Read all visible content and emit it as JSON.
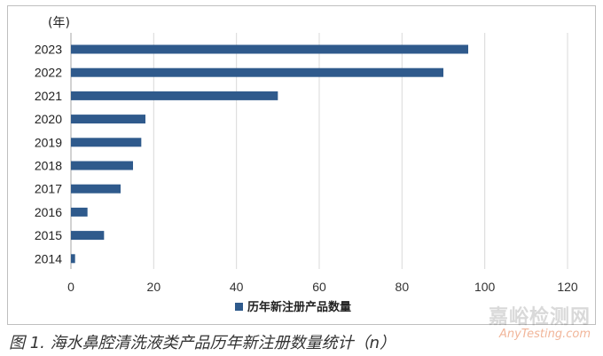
{
  "chart_data": {
    "type": "bar",
    "orientation": "horizontal",
    "title": "",
    "unit_label": "(年)",
    "categories": [
      "2023",
      "2022",
      "2021",
      "2020",
      "2019",
      "2018",
      "2017",
      "2016",
      "2015",
      "2014"
    ],
    "series": [
      {
        "name": "历年新注册产品数量",
        "values": [
          96,
          90,
          50,
          18,
          17,
          15,
          12,
          4,
          8,
          1
        ]
      }
    ],
    "xlim": [
      0,
      120
    ],
    "xticks": [
      "0",
      "20",
      "40",
      "60",
      "80",
      "100",
      "120"
    ],
    "grid": true,
    "legend_position": "bottom",
    "bar_color": "#2f5a8c"
  },
  "caption": "图 1. 海水鼻腔清洗液类产品历年新注册数量统计（n）",
  "watermark": {
    "main": "嘉峪检测网",
    "sub": "AnyTesting.com"
  }
}
